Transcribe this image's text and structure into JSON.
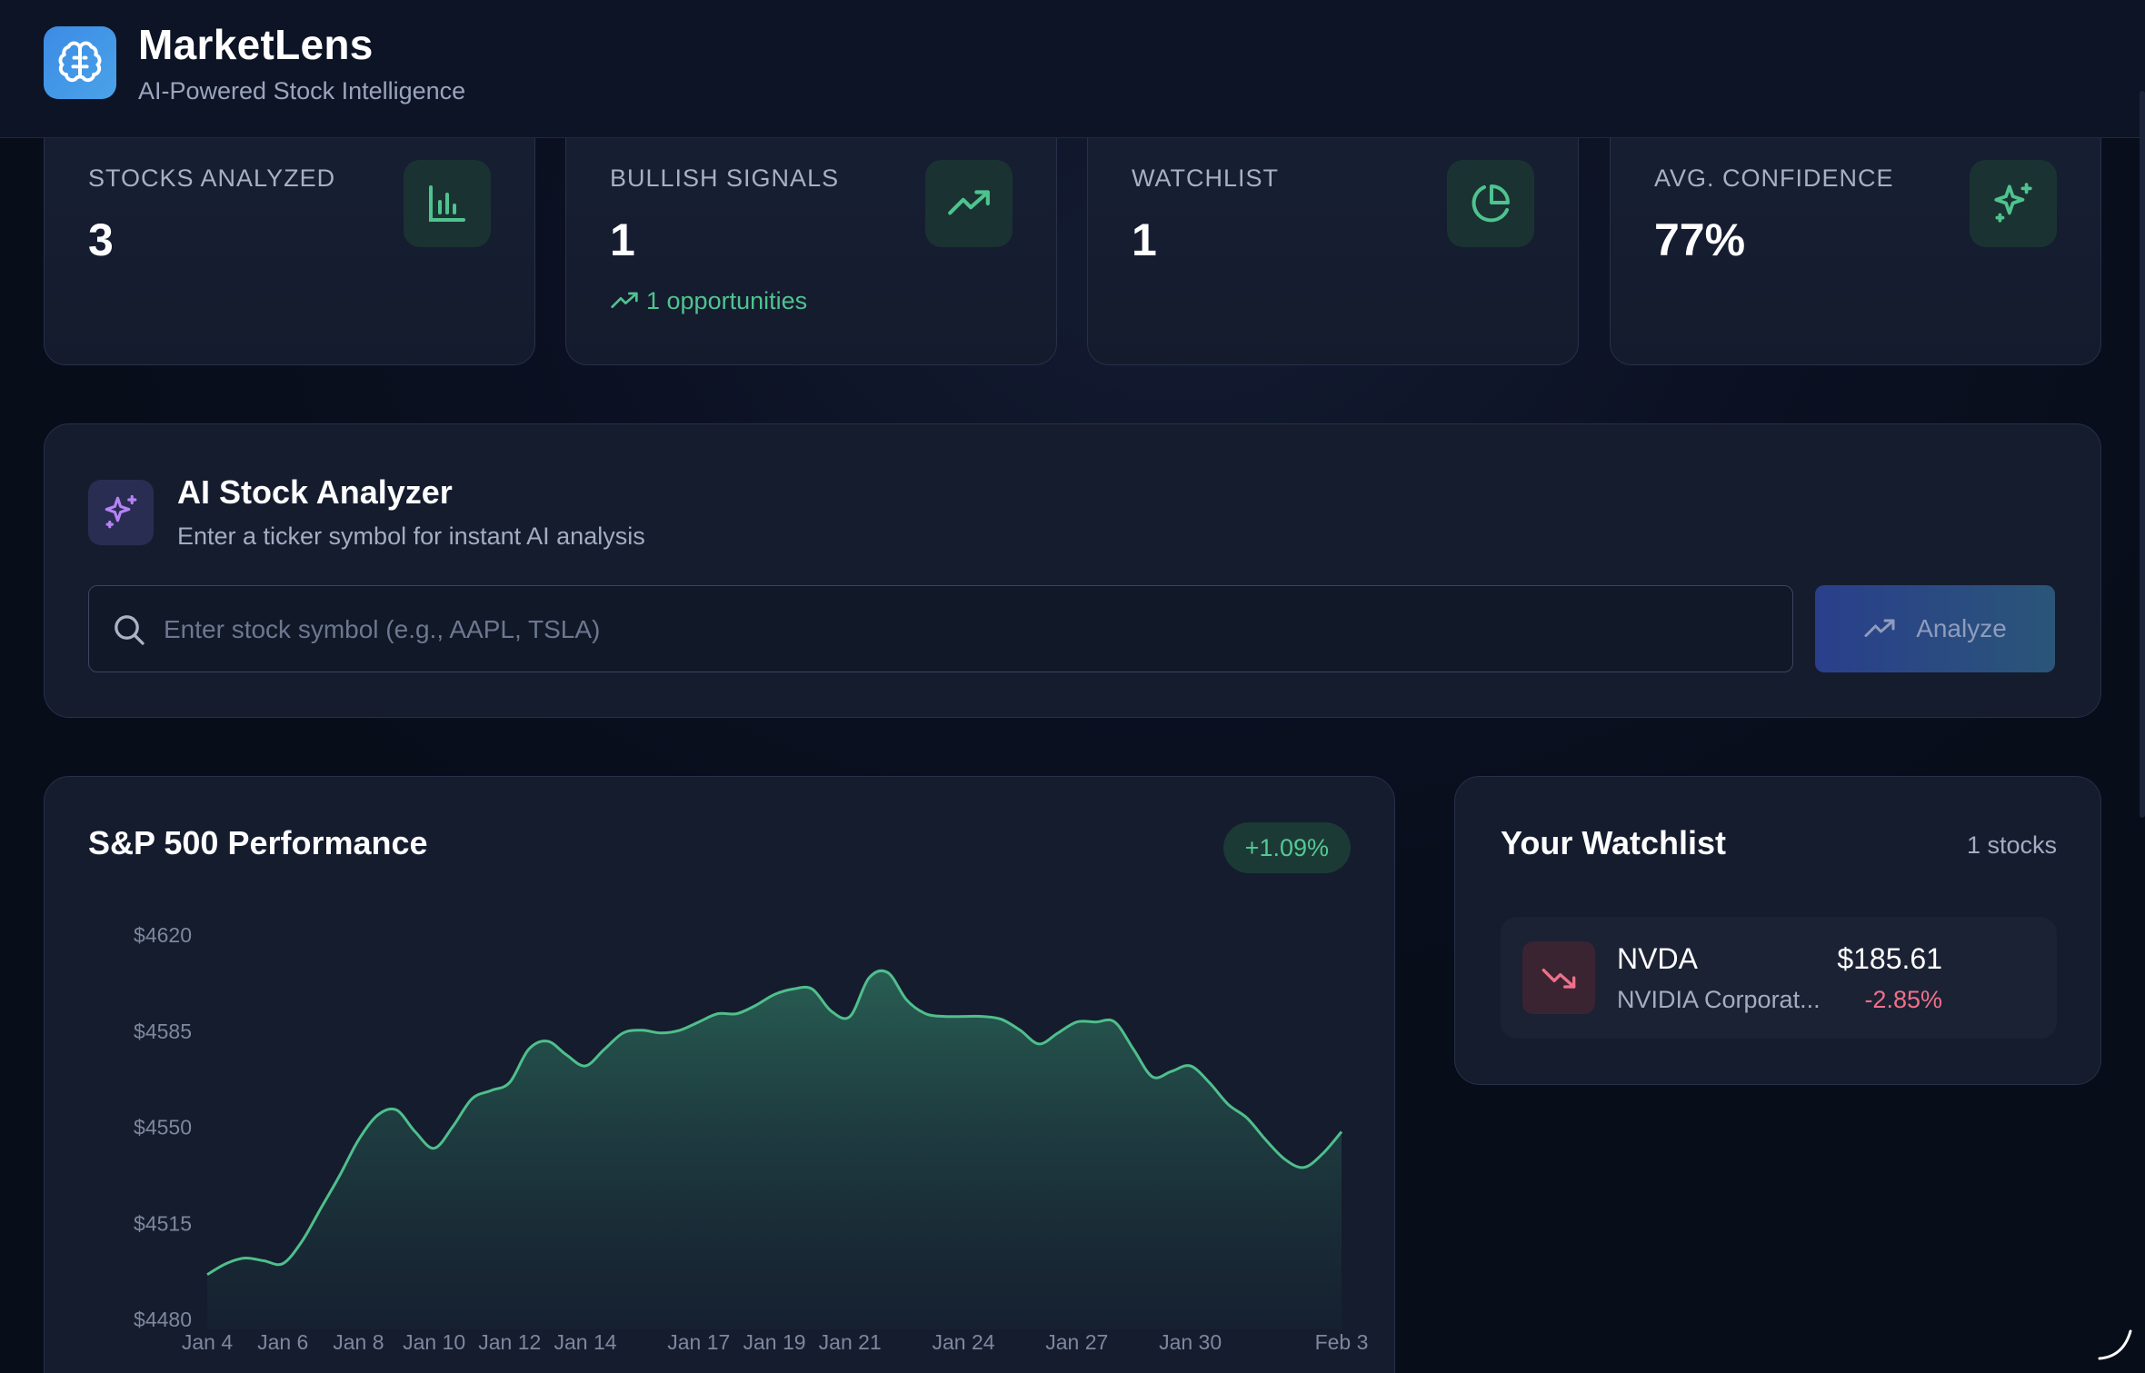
{
  "header": {
    "title": "MarketLens",
    "subtitle": "AI-Powered Stock Intelligence",
    "logo_icon": "brain-icon"
  },
  "stats": [
    {
      "label": "STOCKS ANALYZED",
      "value": "3",
      "icon": "bar-chart-icon"
    },
    {
      "label": "BULLISH SIGNALS",
      "value": "1",
      "icon": "trending-up-icon",
      "extra": "1 opportunities"
    },
    {
      "label": "WATCHLIST",
      "value": "1",
      "icon": "pie-chart-icon"
    },
    {
      "label": "AVG. CONFIDENCE",
      "value": "77%",
      "icon": "sparkles-icon"
    }
  ],
  "analyzer": {
    "title": "AI Stock Analyzer",
    "subtitle": "Enter a ticker symbol for instant AI analysis",
    "placeholder": "Enter stock symbol (e.g., AAPL, TSLA)",
    "button_label": "Analyze"
  },
  "chart_card": {
    "title": "S&P 500 Performance",
    "badge": "+1.09%"
  },
  "chart_data": {
    "type": "area",
    "title": "S&P 500 Performance",
    "xlabel": "",
    "ylabel": "",
    "ylim": [
      4480,
      4620
    ],
    "y_ticks": [
      "$4620",
      "$4585",
      "$4550",
      "$4515",
      "$4480"
    ],
    "y_tick_values": [
      4620,
      4585,
      4550,
      4515,
      4480
    ],
    "x_tick_labels": [
      "Jan 4",
      "Jan 6",
      "Jan 8",
      "Jan 10",
      "Jan 12",
      "Jan 14",
      "Jan 17",
      "Jan 19",
      "Jan 21",
      "Jan 24",
      "Jan 27",
      "Jan 30",
      "Feb 3"
    ],
    "x_tick_days": [
      0,
      2,
      4,
      6,
      8,
      10,
      13,
      15,
      17,
      20,
      23,
      26,
      30
    ],
    "grid": false,
    "color": "#4fbf8b",
    "series": [
      {
        "x": [
          0,
          0.5,
          1,
          1.5,
          2,
          2.5,
          3,
          3.5,
          4,
          4.5,
          5,
          5.5,
          6,
          6.5,
          7,
          7.5,
          8,
          8.5,
          9,
          9.5,
          10,
          10.5,
          11,
          11.5,
          12,
          12.5,
          13,
          13.5,
          14,
          14.5,
          15,
          15.5,
          16,
          16.5,
          17,
          17.5,
          18,
          18.5,
          19,
          19.5,
          20,
          20.5,
          21,
          21.5,
          22,
          22.5,
          23,
          23.5,
          24,
          24.5,
          25,
          25.5,
          26,
          26.5,
          27,
          27.5,
          28,
          28.5,
          29,
          29.5,
          30
        ],
        "y": [
          4496,
          4500,
          4502,
          4501,
          4500,
          4508,
          4520,
          4532,
          4545,
          4554,
          4556,
          4548,
          4542,
          4550,
          4560,
          4563,
          4566,
          4578,
          4581,
          4576,
          4572,
          4578,
          4584,
          4585,
          4584,
          4585,
          4588,
          4591,
          4591,
          4594,
          4598,
          4600,
          4600,
          4592,
          4590,
          4604,
          4606,
          4596,
          4591,
          4590,
          4590,
          4590,
          4589,
          4585,
          4580,
          4584,
          4588,
          4588,
          4588,
          4578,
          4568,
          4570,
          4572,
          4566,
          4558,
          4553,
          4545,
          4538,
          4535,
          4540,
          4548
        ]
      }
    ]
  },
  "watchlist": {
    "title": "Your Watchlist",
    "count": "1 stocks",
    "items": [
      {
        "symbol": "NVDA",
        "name": "NVIDIA Corporat...",
        "price": "$185.61",
        "change": "-2.85%",
        "icon": "trending-down-icon"
      }
    ]
  }
}
